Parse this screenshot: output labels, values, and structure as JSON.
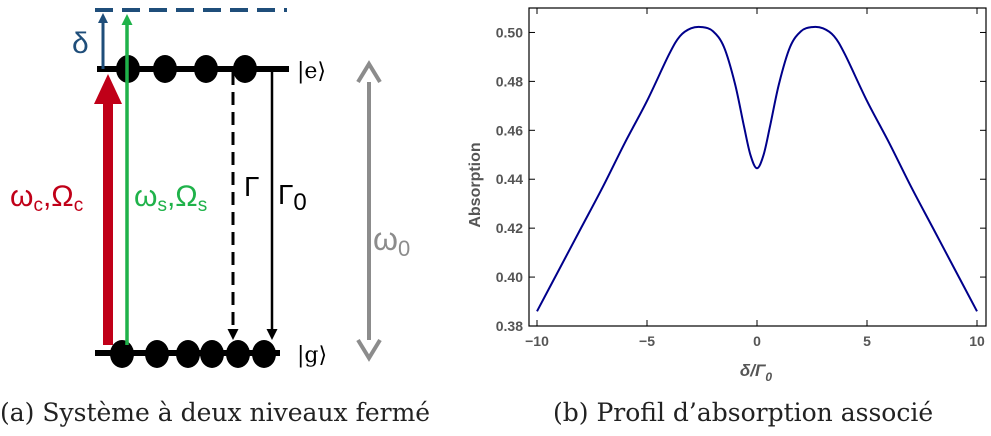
{
  "diagram": {
    "state_upper": "|e⟩",
    "state_lower": "|g⟩",
    "detuning_label": "δ",
    "coupling_label": {
      "omega": "ω",
      "omega_sub": "c",
      "sep": ",",
      "rabi": "Ω",
      "rabi_sub": "c"
    },
    "signal_label": {
      "omega": "ω",
      "omega_sub": "s",
      "sep": ",",
      "rabi": "Ω",
      "rabi_sub": "s"
    },
    "decay_label": "Γ",
    "decay0_label": {
      "main": "Γ",
      "sub": "0"
    },
    "transition_label": {
      "main": "ω",
      "sub": "0"
    },
    "colors": {
      "coupling": "#c00018",
      "signal": "#1fb24a",
      "detuning": "#1f4e7a",
      "dashed_level": "#1f4e7a",
      "transition": "#8c8c8c",
      "levels": "#000000"
    }
  },
  "captions": {
    "left": "(a) Système à deux niveaux fermé",
    "right": "(b) Profil d’absorption associé"
  },
  "chart_data": {
    "type": "line",
    "xlabel": {
      "main": "δ/Γ",
      "sub": "0"
    },
    "ylabel": "Absorption",
    "xlim": [
      -10,
      10
    ],
    "ylim": [
      0.38,
      0.51
    ],
    "xticks": [
      -10,
      -5,
      0,
      5,
      10
    ],
    "xtick_labels": [
      "−10",
      "−5",
      "0",
      "5",
      "10"
    ],
    "yticks": [
      0.38,
      0.4,
      0.42,
      0.44,
      0.46,
      0.48,
      0.5
    ],
    "ytick_labels": [
      "0.38",
      "0.40",
      "0.42",
      "0.44",
      "0.46",
      "0.48",
      "0.50"
    ],
    "series": [
      {
        "color": "#00008b",
        "x": [
          -10,
          -9,
          -8,
          -7,
          -6,
          -5,
          -4,
          -3.5,
          -3,
          -2.5,
          -2,
          -1.5,
          -1,
          -0.6,
          -0.3,
          0,
          0.3,
          0.6,
          1,
          1.5,
          2,
          2.5,
          3,
          3.5,
          4,
          5,
          6,
          7,
          8,
          9,
          10
        ],
        "y": [
          0.386,
          0.403,
          0.42,
          0.437,
          0.455,
          0.472,
          0.491,
          0.4985,
          0.5017,
          0.5022,
          0.5005,
          0.494,
          0.479,
          0.462,
          0.45,
          0.4445,
          0.45,
          0.462,
          0.479,
          0.494,
          0.5005,
          0.5022,
          0.5017,
          0.4985,
          0.491,
          0.472,
          0.455,
          0.437,
          0.42,
          0.403,
          0.386
        ]
      }
    ]
  }
}
